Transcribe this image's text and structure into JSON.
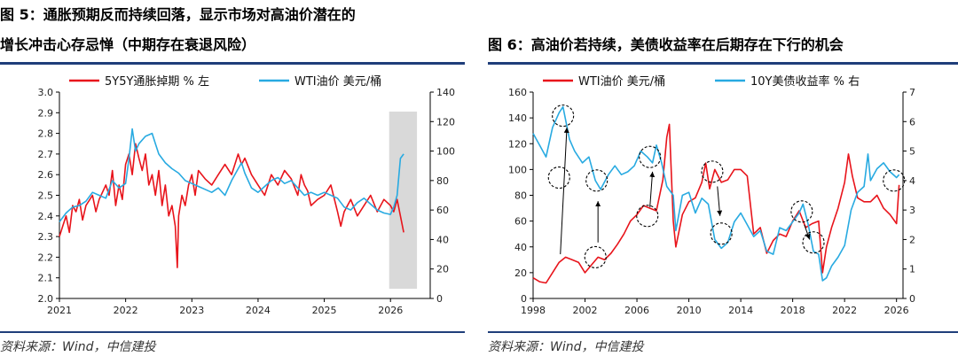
{
  "chart_data": [
    {
      "type": "line",
      "title": "图 5：通胀预期反而持续回落，显示市场对高油价潜在的",
      "title_line2": "增长冲击心存忌惮（中期存在衰退风险）",
      "source": "资料来源：Wind，中信建投",
      "x_ticks": [
        "2021",
        "2022",
        "2023",
        "2024",
        "2025",
        "2026"
      ],
      "xlim": [
        2021.0,
        2026.6
      ],
      "y_left": {
        "lim": [
          2.0,
          3.0
        ],
        "ticks": [
          "2.0",
          "2.1",
          "2.2",
          "2.3",
          "2.4",
          "2.5",
          "2.6",
          "2.7",
          "2.8",
          "2.9",
          "3.0"
        ]
      },
      "y_right": {
        "lim": [
          0,
          140
        ],
        "ticks": [
          "0",
          "20",
          "40",
          "60",
          "80",
          "100",
          "120",
          "140"
        ]
      },
      "shaded_region": {
        "x": [
          2025.98,
          2026.4
        ],
        "color": "#d9d9d9"
      },
      "series": [
        {
          "name": "5Y5Y通胀掉期 % 左",
          "axis": "left",
          "color": "#e8141b",
          "x": [
            2021.0,
            2021.05,
            2021.1,
            2021.15,
            2021.2,
            2021.25,
            2021.3,
            2021.35,
            2021.4,
            2021.5,
            2021.55,
            2021.6,
            2021.7,
            2021.75,
            2021.8,
            2021.85,
            2021.9,
            2021.95,
            2022.0,
            2022.05,
            2022.1,
            2022.15,
            2022.2,
            2022.25,
            2022.3,
            2022.35,
            2022.4,
            2022.45,
            2022.5,
            2022.55,
            2022.6,
            2022.65,
            2022.7,
            2022.75,
            2022.78,
            2022.8,
            2022.85,
            2022.9,
            2022.95,
            2023.0,
            2023.05,
            2023.1,
            2023.2,
            2023.3,
            2023.4,
            2023.5,
            2023.6,
            2023.7,
            2023.75,
            2023.8,
            2023.9,
            2024.0,
            2024.1,
            2024.2,
            2024.3,
            2024.4,
            2024.5,
            2024.6,
            2024.65,
            2024.7,
            2024.75,
            2024.8,
            2024.9,
            2025.0,
            2025.1,
            2025.2,
            2025.25,
            2025.3,
            2025.4,
            2025.5,
            2025.6,
            2025.7,
            2025.8,
            2025.9,
            2026.0,
            2026.05,
            2026.1,
            2026.15,
            2026.2
          ],
          "y": [
            2.3,
            2.35,
            2.4,
            2.32,
            2.45,
            2.42,
            2.48,
            2.38,
            2.45,
            2.5,
            2.42,
            2.48,
            2.55,
            2.5,
            2.62,
            2.45,
            2.55,
            2.48,
            2.65,
            2.7,
            2.6,
            2.75,
            2.68,
            2.62,
            2.7,
            2.55,
            2.6,
            2.5,
            2.62,
            2.45,
            2.55,
            2.4,
            2.45,
            2.35,
            2.15,
            2.4,
            2.5,
            2.45,
            2.55,
            2.6,
            2.5,
            2.62,
            2.58,
            2.55,
            2.6,
            2.65,
            2.6,
            2.7,
            2.65,
            2.68,
            2.6,
            2.55,
            2.5,
            2.6,
            2.55,
            2.62,
            2.58,
            2.5,
            2.6,
            2.55,
            2.52,
            2.45,
            2.48,
            2.5,
            2.55,
            2.42,
            2.35,
            2.42,
            2.48,
            2.4,
            2.45,
            2.5,
            2.42,
            2.48,
            2.45,
            2.42,
            2.48,
            2.4,
            2.32
          ]
        },
        {
          "name": "WTI油价 美元/桶",
          "axis": "right",
          "color": "#28aae1",
          "x": [
            2021.0,
            2021.1,
            2021.2,
            2021.3,
            2021.4,
            2021.5,
            2021.6,
            2021.7,
            2021.8,
            2021.9,
            2022.0,
            2022.05,
            2022.1,
            2022.15,
            2022.2,
            2022.3,
            2022.4,
            2022.45,
            2022.5,
            2022.6,
            2022.7,
            2022.8,
            2022.9,
            2023.0,
            2023.1,
            2023.2,
            2023.3,
            2023.4,
            2023.5,
            2023.6,
            2023.7,
            2023.75,
            2023.8,
            2023.9,
            2024.0,
            2024.1,
            2024.2,
            2024.3,
            2024.4,
            2024.5,
            2024.6,
            2024.7,
            2024.8,
            2024.9,
            2025.0,
            2025.1,
            2025.2,
            2025.3,
            2025.4,
            2025.5,
            2025.6,
            2025.7,
            2025.8,
            2025.9,
            2026.0,
            2026.05,
            2026.1,
            2026.15,
            2026.2
          ],
          "y": [
            52,
            58,
            62,
            63,
            66,
            72,
            70,
            68,
            80,
            75,
            78,
            95,
            115,
            100,
            105,
            110,
            112,
            105,
            98,
            92,
            88,
            85,
            80,
            78,
            76,
            74,
            72,
            75,
            70,
            80,
            88,
            92,
            85,
            75,
            72,
            76,
            80,
            82,
            78,
            80,
            75,
            70,
            72,
            70,
            72,
            70,
            68,
            62,
            60,
            65,
            68,
            64,
            60,
            58,
            57,
            62,
            70,
            95,
            98
          ]
        }
      ]
    },
    {
      "type": "line",
      "title": "图 6：高油价若持续，美债收益率在后期存在下行的机会",
      "source": "资料来源：Wind，中信建投",
      "x_ticks": [
        "1998",
        "2002",
        "2006",
        "2010",
        "2014",
        "2018",
        "2022",
        "2026"
      ],
      "xlim": [
        1998,
        2026.5
      ],
      "y_left": {
        "lim": [
          0,
          160
        ],
        "ticks": [
          "0",
          "20",
          "40",
          "60",
          "80",
          "100",
          "120",
          "140",
          "160"
        ]
      },
      "y_right": {
        "lim": [
          0,
          7
        ],
        "ticks": [
          "0",
          "1",
          "2",
          "3",
          "4",
          "5",
          "6",
          "7"
        ]
      },
      "circles": [
        [
          2000.0,
          4.1
        ],
        [
          2000.3,
          6.2
        ],
        [
          2002.9,
          4.0
        ],
        [
          2002.8,
          1.4
        ],
        [
          2007.0,
          4.8
        ],
        [
          2006.8,
          2.8
        ],
        [
          2011.8,
          4.3
        ],
        [
          2012.5,
          2.2
        ],
        [
          2018.7,
          2.95
        ],
        [
          2019.6,
          1.9
        ],
        [
          2025.8,
          4.0
        ]
      ],
      "arrows": [
        [
          2000.1,
          1.5,
          2000.6,
          5.8
        ],
        [
          2003.0,
          1.9,
          2003.0,
          3.3
        ],
        [
          2007.0,
          3.1,
          2007.2,
          4.3
        ],
        [
          2012.2,
          3.8,
          2012.4,
          2.8
        ],
        [
          2018.9,
          2.5,
          2019.3,
          2.0
        ]
      ],
      "series": [
        {
          "name": "WTI油价 美元/桶",
          "axis": "left",
          "color": "#e8141b",
          "x": [
            1998.0,
            1998.5,
            1999.0,
            1999.5,
            2000.0,
            2000.5,
            2001.0,
            2001.5,
            2002.0,
            2002.5,
            2003.0,
            2003.5,
            2004.0,
            2004.5,
            2005.0,
            2005.5,
            2006.0,
            2006.5,
            2007.0,
            2007.5,
            2008.0,
            2008.3,
            2008.5,
            2008.8,
            2009.0,
            2009.5,
            2010.0,
            2010.5,
            2011.0,
            2011.3,
            2011.6,
            2012.0,
            2012.5,
            2013.0,
            2013.5,
            2014.0,
            2014.5,
            2015.0,
            2015.5,
            2016.0,
            2016.5,
            2017.0,
            2017.5,
            2018.0,
            2018.5,
            2019.0,
            2019.5,
            2020.0,
            2020.3,
            2020.6,
            2021.0,
            2021.5,
            2022.0,
            2022.3,
            2022.6,
            2023.0,
            2023.5,
            2024.0,
            2024.5,
            2025.0,
            2025.5,
            2026.0,
            2026.2
          ],
          "y": [
            16,
            13,
            12,
            20,
            28,
            32,
            30,
            28,
            20,
            26,
            32,
            30,
            35,
            42,
            50,
            60,
            65,
            72,
            70,
            68,
            92,
            125,
            135,
            60,
            40,
            65,
            75,
            78,
            90,
            105,
            85,
            100,
            90,
            92,
            100,
            100,
            95,
            50,
            55,
            35,
            45,
            50,
            48,
            60,
            68,
            55,
            58,
            60,
            20,
            40,
            55,
            70,
            90,
            112,
            95,
            78,
            75,
            75,
            80,
            70,
            65,
            58,
            88
          ]
        },
        {
          "name": "10Y美债收益率 % 右",
          "axis": "right",
          "color": "#28aae1",
          "x": [
            1998.0,
            1998.5,
            1999.0,
            1999.5,
            2000.0,
            2000.3,
            2000.8,
            2001.2,
            2001.8,
            2002.3,
            2002.8,
            2003.2,
            2003.8,
            2004.3,
            2004.8,
            2005.3,
            2005.8,
            2006.3,
            2006.8,
            2007.2,
            2007.5,
            2007.9,
            2008.3,
            2008.8,
            2009.0,
            2009.5,
            2010.0,
            2010.5,
            2011.0,
            2011.5,
            2012.0,
            2012.5,
            2013.0,
            2013.5,
            2014.0,
            2014.5,
            2015.0,
            2015.5,
            2016.0,
            2016.5,
            2017.0,
            2017.5,
            2018.0,
            2018.5,
            2018.8,
            2019.2,
            2019.6,
            2020.0,
            2020.3,
            2020.6,
            2021.0,
            2021.5,
            2022.0,
            2022.5,
            2023.0,
            2023.5,
            2023.8,
            2024.0,
            2024.5,
            2025.0,
            2025.5,
            2026.0,
            2026.2
          ],
          "y": [
            5.6,
            5.2,
            4.8,
            5.8,
            6.3,
            6.5,
            5.4,
            5.0,
            4.6,
            4.8,
            4.0,
            3.7,
            4.2,
            4.5,
            4.2,
            4.3,
            4.5,
            5.0,
            4.8,
            4.6,
            5.2,
            4.6,
            3.8,
            3.5,
            2.3,
            3.5,
            3.6,
            2.9,
            3.4,
            3.2,
            2.0,
            1.7,
            1.9,
            2.6,
            2.9,
            2.5,
            2.1,
            2.3,
            1.6,
            1.5,
            2.4,
            2.3,
            2.6,
            2.9,
            3.2,
            2.5,
            1.6,
            1.5,
            0.6,
            0.7,
            1.1,
            1.4,
            1.8,
            3.0,
            3.6,
            3.8,
            4.9,
            4.0,
            4.4,
            4.6,
            4.3,
            4.1,
            4.2
          ]
        }
      ]
    }
  ]
}
